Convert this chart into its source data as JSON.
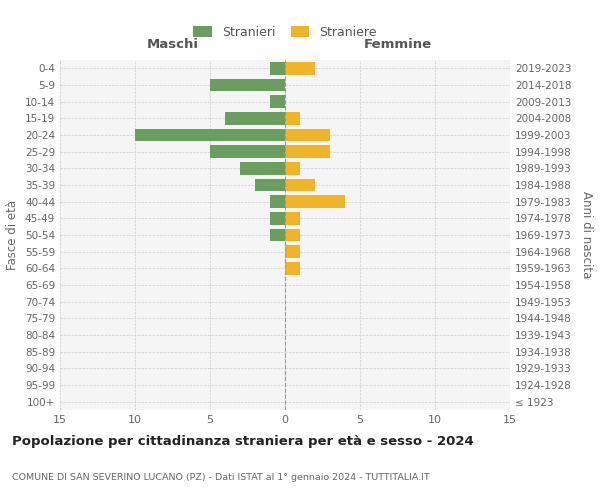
{
  "age_groups": [
    "100+",
    "95-99",
    "90-94",
    "85-89",
    "80-84",
    "75-79",
    "70-74",
    "65-69",
    "60-64",
    "55-59",
    "50-54",
    "45-49",
    "40-44",
    "35-39",
    "30-34",
    "25-29",
    "20-24",
    "15-19",
    "10-14",
    "5-9",
    "0-4"
  ],
  "birth_years": [
    "≤ 1923",
    "1924-1928",
    "1929-1933",
    "1934-1938",
    "1939-1943",
    "1944-1948",
    "1949-1953",
    "1954-1958",
    "1959-1963",
    "1964-1968",
    "1969-1973",
    "1974-1978",
    "1979-1983",
    "1984-1988",
    "1989-1993",
    "1994-1998",
    "1999-2003",
    "2004-2008",
    "2009-2013",
    "2014-2018",
    "2019-2023"
  ],
  "maschi": [
    0,
    0,
    0,
    0,
    0,
    0,
    0,
    0,
    0,
    0,
    1,
    1,
    1,
    2,
    3,
    5,
    10,
    4,
    1,
    5,
    1
  ],
  "femmine": [
    0,
    0,
    0,
    0,
    0,
    0,
    0,
    0,
    1,
    1,
    1,
    1,
    4,
    2,
    1,
    3,
    3,
    1,
    0,
    0,
    2
  ],
  "color_maschi": "#6a9e5e",
  "color_femmine": "#f0b429",
  "xlim": 15,
  "title": "Popolazione per cittadinanza straniera per età e sesso - 2024",
  "subtitle": "COMUNE DI SAN SEVERINO LUCANO (PZ) - Dati ISTAT al 1° gennaio 2024 - TUTTITALIA.IT",
  "ylabel_left": "Fasce di età",
  "ylabel_right": "Anni di nascita",
  "legend_maschi": "Stranieri",
  "legend_femmine": "Straniere",
  "header_left": "Maschi",
  "header_right": "Femmine",
  "bg_color": "#ffffff",
  "plot_bg": "#f5f5f5"
}
